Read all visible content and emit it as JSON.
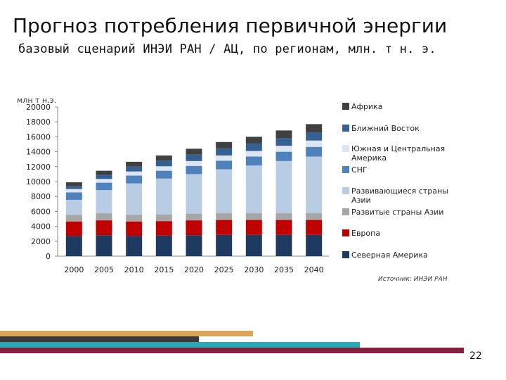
{
  "header": {
    "title": "Прогноз потребления первичной энергии",
    "subtitle": "базовый сценарий ИНЭИ РАН / АЦ, по регионам, млн. т н. э."
  },
  "source": "Источник: ИНЭИ РАН",
  "page_number": "22",
  "decor_colors": [
    "#d9a55a",
    "#3a3a3a",
    "#2aa6b5",
    "#8a1f3c"
  ],
  "chart_data": {
    "type": "bar",
    "stacked": true,
    "ylabel": "млн т н.э.",
    "ylim": [
      0,
      20000
    ],
    "yticks": [
      0,
      2000,
      4000,
      6000,
      8000,
      10000,
      12000,
      14000,
      16000,
      18000,
      20000
    ],
    "ytick_labels": [
      "0",
      "2000",
      "4000",
      "6000",
      "8000",
      "10000",
      "12000",
      "14000",
      "16000",
      "18000",
      "20000"
    ],
    "categories": [
      "2000",
      "2005",
      "2010",
      "2015",
      "2020",
      "2025",
      "2030",
      "2035",
      "2040"
    ],
    "legend_position": "right",
    "series": [
      {
        "name": "Северная Америка",
        "color": "#1f3a60",
        "values": [
          2700,
          2800,
          2700,
          2750,
          2800,
          2850,
          2850,
          2850,
          2850
        ]
      },
      {
        "name": "Европа",
        "color": "#c00000",
        "values": [
          1950,
          2000,
          1950,
          1950,
          2000,
          2000,
          2000,
          2000,
          2000
        ]
      },
      {
        "name": "Развитые страны Азии",
        "color": "#a6a6a6",
        "values": [
          900,
          950,
          900,
          900,
          900,
          900,
          900,
          900,
          900
        ]
      },
      {
        "name": "Развивающиеся страны Азии",
        "color": "#b8cce4",
        "values": [
          2000,
          3100,
          4200,
          4800,
          5300,
          5900,
          6400,
          7000,
          7600
        ]
      },
      {
        "name": "СНГ",
        "color": "#4f81bd",
        "values": [
          1000,
          1000,
          1050,
          1050,
          1100,
          1150,
          1200,
          1250,
          1300
        ]
      },
      {
        "name": "Южная и Центральная Америка",
        "color": "#dce6f2",
        "values": [
          450,
          500,
          550,
          600,
          650,
          700,
          750,
          800,
          850
        ]
      },
      {
        "name": "Ближний Восток",
        "color": "#366092",
        "values": [
          400,
          550,
          650,
          750,
          850,
          950,
          1000,
          1050,
          1100
        ]
      },
      {
        "name": "Африка",
        "color": "#404040",
        "values": [
          500,
          550,
          650,
          700,
          800,
          850,
          900,
          1000,
          1100
        ]
      }
    ]
  }
}
